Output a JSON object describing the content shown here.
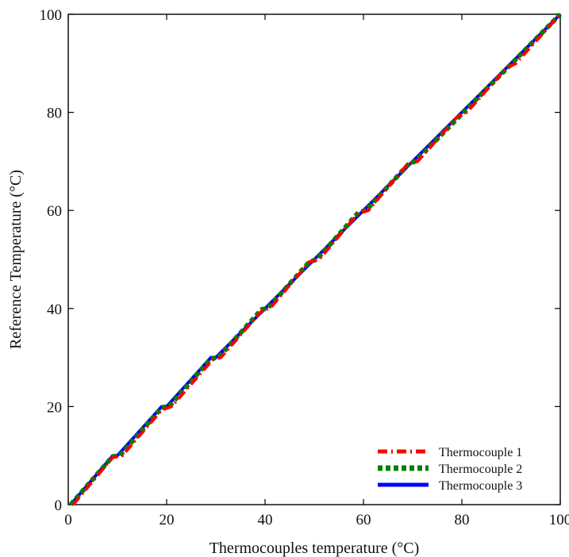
{
  "chart_data": {
    "type": "line",
    "title": "",
    "xlabel": "Thermocouples temperature (°C)",
    "ylabel": "Reference Temperature (°C)",
    "xlim": [
      0,
      100
    ],
    "ylim": [
      0,
      100
    ],
    "xticks": [
      0,
      20,
      40,
      60,
      80,
      100
    ],
    "yticks": [
      0,
      20,
      40,
      60,
      80,
      100
    ],
    "grid": false,
    "legend_position": "bottom-right",
    "series": [
      {
        "name": "Thermocouple 1",
        "color": "#ff0000",
        "line_style": "dash-dot",
        "points": [
          [
            1,
            0
          ],
          [
            9,
            9.6
          ],
          [
            11,
            10
          ],
          [
            19,
            19.3
          ],
          [
            21,
            20
          ],
          [
            29.3,
            29.5
          ],
          [
            31,
            30
          ],
          [
            39.5,
            39.7
          ],
          [
            41,
            40
          ],
          [
            49,
            49.5
          ],
          [
            51,
            50
          ],
          [
            59,
            59.5
          ],
          [
            61,
            60
          ],
          [
            69,
            69.5
          ],
          [
            71,
            70
          ],
          [
            79,
            79
          ],
          [
            81,
            80
          ],
          [
            89,
            89
          ],
          [
            91,
            90
          ],
          [
            100,
            100
          ]
        ]
      },
      {
        "name": "Thermocouple 2",
        "color": "#008000",
        "line_style": "dotted",
        "points": [
          [
            0.5,
            0
          ],
          [
            9,
            9.8
          ],
          [
            10.5,
            10
          ],
          [
            19,
            19.8
          ],
          [
            20.5,
            20
          ],
          [
            29,
            29.8
          ],
          [
            30.5,
            30
          ],
          [
            39.3,
            39.8
          ],
          [
            40.5,
            40
          ],
          [
            49,
            49.5
          ],
          [
            50.5,
            50
          ],
          [
            59,
            59.6
          ],
          [
            60.5,
            60
          ],
          [
            69.3,
            69.6
          ],
          [
            70.5,
            70
          ],
          [
            100,
            100
          ]
        ]
      },
      {
        "name": "Thermocouple 3",
        "color": "#0000ff",
        "line_style": "solid",
        "points": [
          [
            0.5,
            0
          ],
          [
            9,
            9.9
          ],
          [
            10,
            10
          ],
          [
            19,
            20
          ],
          [
            20,
            20
          ],
          [
            29,
            30
          ],
          [
            30,
            30
          ],
          [
            40,
            40
          ],
          [
            50,
            50
          ],
          [
            60,
            60
          ],
          [
            70,
            70
          ],
          [
            80,
            80
          ],
          [
            90,
            90
          ],
          [
            100,
            100
          ]
        ]
      }
    ]
  }
}
